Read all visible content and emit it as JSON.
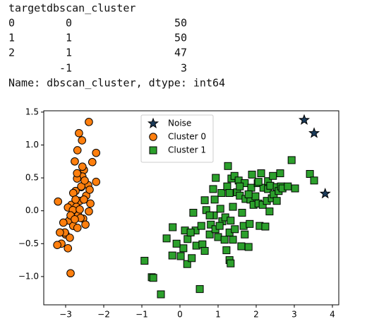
{
  "output": {
    "header": [
      "target",
      "dbscan_cluster"
    ],
    "rows": [
      {
        "index": "0",
        "cluster": "0",
        "count": "50"
      },
      {
        "index": "1",
        "cluster": "1",
        "count": "50"
      },
      {
        "index": "2",
        "cluster": "1",
        "count": "47"
      },
      {
        "cluster": "-1",
        "count": "3"
      }
    ],
    "footer": "Name: dbscan_cluster, dtype: int64"
  },
  "chart_data": {
    "type": "scatter",
    "xlim": [
      -3.574,
      4.167
    ],
    "ylim": [
      -1.43,
      1.52
    ],
    "xticks": [
      {
        "value": -3,
        "label": "−3"
      },
      {
        "value": -2,
        "label": "−2"
      },
      {
        "value": -1,
        "label": "−1"
      },
      0,
      1,
      2,
      3,
      4
    ],
    "yticks": [
      {
        "value": -1,
        "label": "−1.0"
      },
      {
        "value": -0.5,
        "label": "−0.5"
      },
      {
        "value": 0,
        "label": "0.0"
      },
      0.5,
      {
        "value": 1,
        "label": "1.0"
      },
      1.5
    ],
    "legend": "upper center",
    "series": [
      {
        "name": "Noise",
        "color": "#1b3b5a",
        "marker": "star",
        "x": [
          3.26,
          3.52,
          3.81
        ],
        "values": [
          1.38,
          1.18,
          0.26
        ]
      },
      {
        "name": "Cluster 0",
        "color": "#ff7f0e",
        "marker": "circle",
        "x": [
          -2.39,
          -2.65,
          -2.57,
          -2.69,
          -2.2,
          -2.3,
          -2.76,
          -2.52,
          -2.56,
          -2.7,
          -2.2,
          -2.41,
          -2.59,
          -2.74,
          -2.8,
          -2.46,
          -2.85,
          -3.2,
          -2.63,
          -2.35,
          -2.72,
          -2.39,
          -2.94,
          -2.81,
          -2.67,
          -2.54,
          -2.91,
          -2.8,
          -3.06,
          -2.48,
          -2.69,
          -3.0,
          -2.89,
          -3.11,
          -3.22,
          -2.94,
          -3.02,
          -2.61,
          -2.74,
          -2.59,
          -2.5,
          -2.87,
          -2.76,
          -2.63,
          -2.37,
          -2.52,
          -3.15,
          -2.87,
          -2.56,
          -2.7
        ],
        "values": [
          1.35,
          1.18,
          1.07,
          0.92,
          0.88,
          0.74,
          0.75,
          0.62,
          0.52,
          0.49,
          0.44,
          0.39,
          0.36,
          0.3,
          0.27,
          0.23,
          0.09,
          0.14,
          0.15,
          0.11,
          0.06,
          -0.01,
          0.05,
          0.01,
          -0.07,
          -0.12,
          -0.15,
          -0.23,
          -0.18,
          -0.21,
          -0.26,
          -0.36,
          -0.41,
          -0.5,
          -0.52,
          -0.57,
          -0.33,
          -0.11,
          0.17,
          0.37,
          0.46,
          -0.07,
          -0.13,
          0.02,
          0.32,
          0.17,
          -0.33,
          -0.95,
          0.67,
          0.57
        ]
      },
      {
        "name": "Cluster 1",
        "color": "#2ca02c",
        "marker": "square",
        "x": [
          -0.93,
          -0.74,
          -0.7,
          -0.5,
          0.52,
          -0.19,
          -0.35,
          -0.2,
          0.02,
          0.09,
          0.13,
          0.19,
          0.35,
          0.2,
          0.41,
          0.43,
          0.56,
          0.59,
          0.65,
          0.69,
          0.78,
          0.81,
          0.87,
          0.89,
          0.91,
          0.94,
          1.0,
          1.06,
          1.09,
          1.11,
          1.19,
          1.22,
          1.24,
          1.26,
          1.3,
          1.3,
          1.33,
          1.35,
          1.39,
          1.43,
          1.5,
          1.54,
          1.57,
          1.61,
          1.63,
          1.7,
          1.67,
          1.72,
          1.8,
          1.83,
          1.85,
          1.89,
          1.87,
          1.98,
          1.93,
          2.04,
          2.06,
          2.09,
          2.13,
          2.17,
          2.19,
          2.24,
          2.28,
          2.31,
          2.31,
          2.35,
          2.37,
          2.41,
          2.44,
          2.46,
          2.54,
          2.59,
          2.63,
          2.65,
          2.69,
          2.83,
          2.93,
          3.02,
          3.41,
          3.52,
          1.3,
          1.33,
          0.93,
          0.65,
          0.31,
          0.28,
          -0.09,
          1.39,
          2.06,
          1.57,
          1.8,
          1.04,
          1.17,
          1.44,
          2.54,
          1.7,
          0.78
        ],
        "values": [
          -0.76,
          -1.01,
          -1.02,
          -1.27,
          -1.19,
          -0.25,
          -0.42,
          -0.68,
          -0.69,
          -0.57,
          -0.3,
          -0.81,
          -0.03,
          -0.43,
          -0.3,
          -0.53,
          -0.23,
          -0.51,
          0.16,
          0.01,
          -0.36,
          -0.21,
          0.33,
          -0.07,
          0.17,
          0.5,
          -0.4,
          0.03,
          0.27,
          -0.16,
          -0.1,
          -0.6,
          0.37,
          0.68,
          0.27,
          -0.33,
          -0.15,
          0.49,
          -0.44,
          0.53,
          0.28,
          0.46,
          0.23,
          -0.54,
          -0.03,
          0.42,
          -0.23,
          0.18,
          -0.55,
          -0.2,
          0.17,
          0.55,
          0.35,
          0.22,
          0.09,
          0.42,
          0.11,
          -0.23,
          0.57,
          0.09,
          0.35,
          -0.24,
          0.15,
          0.33,
          0.45,
          -0.01,
          0.38,
          0.19,
          0.53,
          0.25,
          0.36,
          0.3,
          0.57,
          0.37,
          0.34,
          0.37,
          0.77,
          0.34,
          0.56,
          0.46,
          -0.75,
          -0.8,
          -0.28,
          -0.61,
          -0.72,
          -0.33,
          -0.5,
          0.06,
          0.44,
          0.37,
          0.25,
          -0.23,
          -0.44,
          -0.28,
          0.15,
          -0.36,
          -0.07
        ]
      }
    ]
  }
}
